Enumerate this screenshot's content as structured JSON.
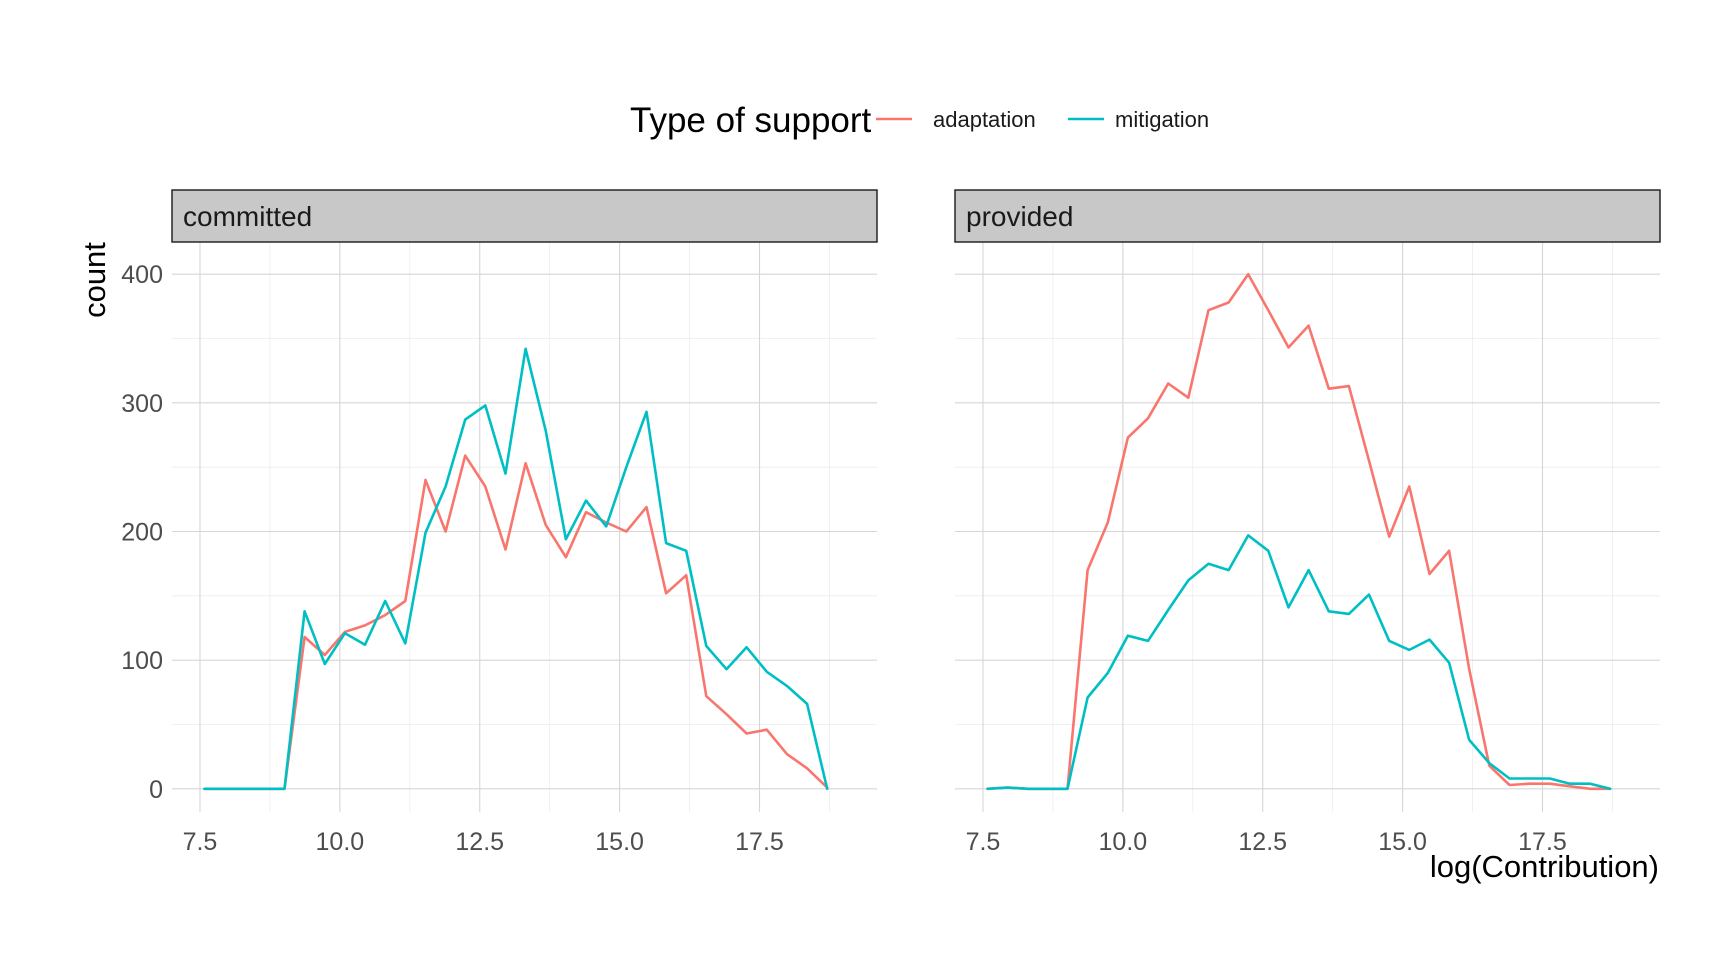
{
  "chart_data": {
    "type": "line",
    "xlabel": "log(Contribution)",
    "ylabel": "count",
    "xlim": [
      7.0,
      19.6
    ],
    "ylim": [
      -18,
      425
    ],
    "x_ticks": [
      7.5,
      10.0,
      12.5,
      15.0,
      17.5
    ],
    "x_tick_labels": [
      "7.5",
      "10.0",
      "12.5",
      "15.0",
      "17.5"
    ],
    "y_ticks": [
      0,
      100,
      200,
      300,
      400
    ],
    "y_tick_labels": [
      "0",
      "100",
      "200",
      "300",
      "400"
    ],
    "grid": true,
    "legend": {
      "title": "Type of support",
      "position": "top",
      "entries": [
        {
          "name": "adaptation",
          "color": "#F8766D"
        },
        {
          "name": "mitigation",
          "color": "#00BFC4"
        }
      ]
    },
    "x": [
      7.58,
      7.94,
      8.3,
      8.65,
      9.01,
      9.37,
      9.73,
      10.09,
      10.45,
      10.81,
      11.17,
      11.53,
      11.89,
      12.24,
      12.6,
      12.96,
      13.32,
      13.68,
      14.04,
      14.4,
      14.76,
      15.12,
      15.48,
      15.83,
      16.19,
      16.55,
      16.91,
      17.27,
      17.63,
      17.99,
      18.35,
      18.71
    ],
    "panels": [
      {
        "label": "committed",
        "series": [
          {
            "name": "adaptation",
            "color": "#F8766D",
            "values": [
              0,
              0,
              0,
              0,
              0,
              118,
              104,
              122,
              127,
              135,
              146,
              240,
              200,
              259,
              235,
              186,
              253,
              205,
              180,
              215,
              207,
              200,
              219,
              152,
              166,
              72,
              58,
              43,
              46,
              27,
              16,
              1
            ]
          },
          {
            "name": "mitigation",
            "color": "#00BFC4",
            "values": [
              0,
              0,
              0,
              0,
              0,
              138,
              97,
              121,
              112,
              146,
              113,
              199,
              235,
              287,
              298,
              245,
              342,
              278,
              194,
              224,
              204,
              250,
              293,
              191,
              185,
              111,
              93,
              110,
              91,
              80,
              66,
              0
            ]
          }
        ]
      },
      {
        "label": "provided",
        "series": [
          {
            "name": "adaptation",
            "color": "#F8766D",
            "values": [
              0,
              1,
              0,
              0,
              0,
              170,
              207,
              273,
              288,
              315,
              304,
              372,
              378,
              400,
              372,
              343,
              360,
              311,
              313,
              255,
              196,
              235,
              167,
              185,
              93,
              18,
              3,
              4,
              4,
              2,
              0,
              0
            ]
          },
          {
            "name": "mitigation",
            "color": "#00BFC4",
            "values": [
              0,
              1,
              0,
              0,
              0,
              71,
              90,
              119,
              115,
              139,
              162,
              175,
              170,
              197,
              185,
              141,
              170,
              138,
              136,
              151,
              115,
              108,
              116,
              98,
              38,
              20,
              8,
              8,
              8,
              4,
              4,
              0
            ]
          }
        ]
      }
    ]
  }
}
